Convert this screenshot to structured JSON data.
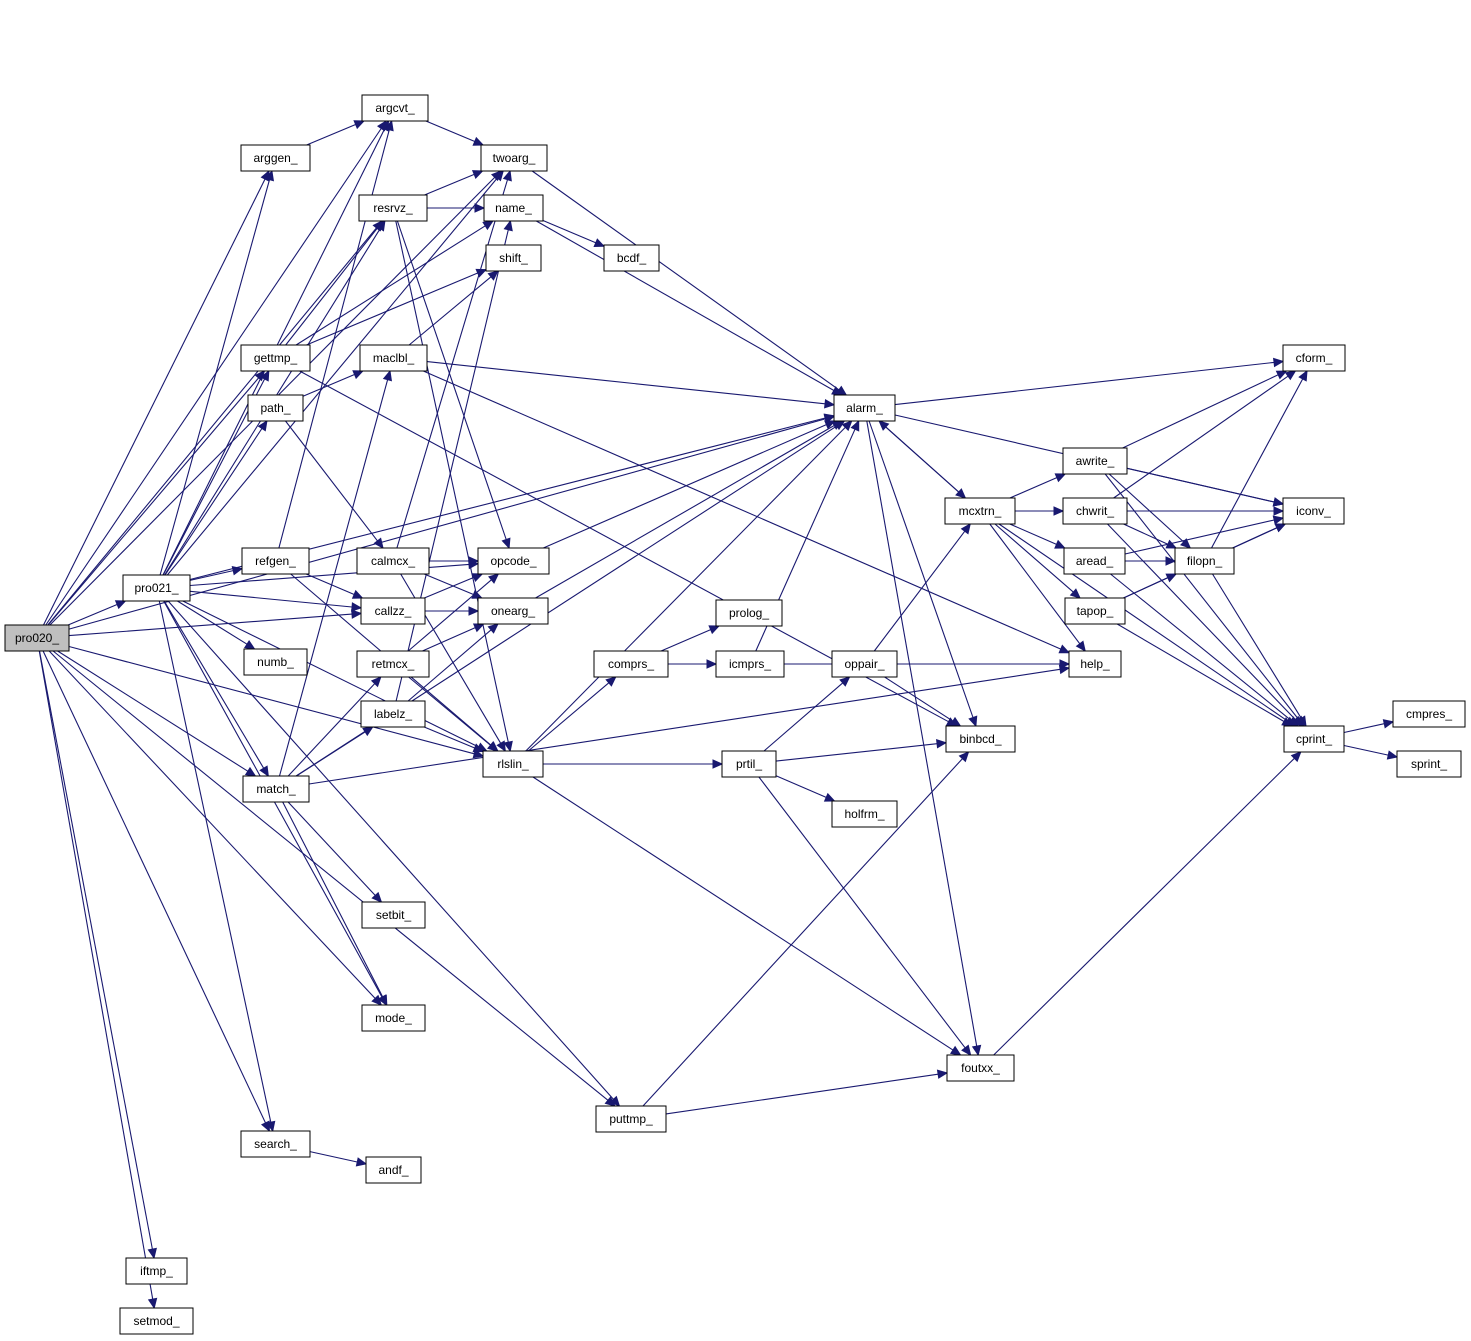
{
  "colors": {
    "edge": "#191970",
    "node_fill": "#ffffff",
    "node_border": "#000000",
    "node_border_truncated": "#ff0000",
    "root_fill": "#bfbfbf"
  },
  "nodes": [
    {
      "id": "pro020",
      "label": "pro020_",
      "kind": "root"
    },
    {
      "id": "pro021",
      "label": "pro021_",
      "kind": "normal"
    },
    {
      "id": "argcvt",
      "label": "argcvt_",
      "kind": "normal"
    },
    {
      "id": "arggen",
      "label": "arggen_",
      "kind": "normal"
    },
    {
      "id": "twoarg",
      "label": "twoarg_",
      "kind": "normal"
    },
    {
      "id": "resrvz",
      "label": "resrvz_",
      "kind": "normal"
    },
    {
      "id": "name",
      "label": "name_",
      "kind": "normal"
    },
    {
      "id": "bcdf",
      "label": "bcdf_",
      "kind": "normal"
    },
    {
      "id": "shift",
      "label": "shift_",
      "kind": "normal"
    },
    {
      "id": "gettmp",
      "label": "gettmp_",
      "kind": "normal"
    },
    {
      "id": "maclbl",
      "label": "maclbl_",
      "kind": "normal"
    },
    {
      "id": "path",
      "label": "path_",
      "kind": "normal"
    },
    {
      "id": "alarm",
      "label": "alarm_",
      "kind": "normal"
    },
    {
      "id": "refgen",
      "label": "refgen_",
      "kind": "normal"
    },
    {
      "id": "calmcx",
      "label": "calmcx_",
      "kind": "normal"
    },
    {
      "id": "opcode",
      "label": "opcode_",
      "kind": "normal"
    },
    {
      "id": "callzz",
      "label": "callzz_",
      "kind": "normal"
    },
    {
      "id": "onearg",
      "label": "onearg_",
      "kind": "normal"
    },
    {
      "id": "numb",
      "label": "numb_",
      "kind": "normal"
    },
    {
      "id": "retmcx",
      "label": "retmcx_",
      "kind": "normal"
    },
    {
      "id": "labelz",
      "label": "labelz_",
      "kind": "normal"
    },
    {
      "id": "rlslin",
      "label": "rlslin_",
      "kind": "normal"
    },
    {
      "id": "match",
      "label": "match_",
      "kind": "normal"
    },
    {
      "id": "setbit",
      "label": "setbit_",
      "kind": "normal"
    },
    {
      "id": "mode",
      "label": "mode_",
      "kind": "normal"
    },
    {
      "id": "search",
      "label": "search_",
      "kind": "normal"
    },
    {
      "id": "andf",
      "label": "andf_",
      "kind": "normal"
    },
    {
      "id": "puttmp",
      "label": "puttmp_",
      "kind": "normal"
    },
    {
      "id": "iftmp",
      "label": "iftmp_",
      "kind": "normal"
    },
    {
      "id": "setmod",
      "label": "setmod_",
      "kind": "normal"
    },
    {
      "id": "prolog",
      "label": "prolog_",
      "kind": "truncated"
    },
    {
      "id": "comprs",
      "label": "comprs_",
      "kind": "normal"
    },
    {
      "id": "icmprs",
      "label": "icmprs_",
      "kind": "truncated"
    },
    {
      "id": "oppair",
      "label": "oppair_",
      "kind": "normal"
    },
    {
      "id": "prtil",
      "label": "prtil_",
      "kind": "normal"
    },
    {
      "id": "holfrm",
      "label": "holfrm_",
      "kind": "normal"
    },
    {
      "id": "binbcd",
      "label": "binbcd_",
      "kind": "normal"
    },
    {
      "id": "foutxx",
      "label": "foutxx_",
      "kind": "normal"
    },
    {
      "id": "mcxtrn",
      "label": "mcxtrn_",
      "kind": "normal"
    },
    {
      "id": "help",
      "label": "help_",
      "kind": "normal"
    },
    {
      "id": "awrite",
      "label": "awrite_",
      "kind": "normal"
    },
    {
      "id": "chwrit",
      "label": "chwrit_",
      "kind": "normal"
    },
    {
      "id": "aread",
      "label": "aread_",
      "kind": "normal"
    },
    {
      "id": "tapop",
      "label": "tapop_",
      "kind": "truncated"
    },
    {
      "id": "filopn",
      "label": "filopn_",
      "kind": "truncated"
    },
    {
      "id": "cform",
      "label": "cform_",
      "kind": "normal"
    },
    {
      "id": "iconv",
      "label": "iconv_",
      "kind": "normal"
    },
    {
      "id": "cprint",
      "label": "cprint_",
      "kind": "normal"
    },
    {
      "id": "cmpres",
      "label": "cmpres_",
      "kind": "normal"
    },
    {
      "id": "sprint",
      "label": "sprint_",
      "kind": "normal"
    }
  ],
  "edges": [
    [
      "pro020",
      "pro021"
    ],
    [
      "pro020",
      "argcvt"
    ],
    [
      "pro020",
      "arggen"
    ],
    [
      "pro020",
      "twoarg"
    ],
    [
      "pro020",
      "resrvz"
    ],
    [
      "pro020",
      "gettmp"
    ],
    [
      "pro020",
      "alarm"
    ],
    [
      "pro020",
      "callzz"
    ],
    [
      "pro020",
      "match"
    ],
    [
      "pro020",
      "mode"
    ],
    [
      "pro020",
      "rlslin"
    ],
    [
      "pro020",
      "search"
    ],
    [
      "pro020",
      "puttmp"
    ],
    [
      "pro020",
      "iftmp"
    ],
    [
      "pro020",
      "setmod"
    ],
    [
      "pro021",
      "arggen"
    ],
    [
      "pro021",
      "argcvt"
    ],
    [
      "pro021",
      "twoarg"
    ],
    [
      "pro021",
      "resrvz"
    ],
    [
      "pro021",
      "gettmp"
    ],
    [
      "pro021",
      "path"
    ],
    [
      "pro021",
      "alarm"
    ],
    [
      "pro021",
      "refgen"
    ],
    [
      "pro021",
      "opcode"
    ],
    [
      "pro021",
      "callzz"
    ],
    [
      "pro021",
      "numb"
    ],
    [
      "pro021",
      "match"
    ],
    [
      "pro021",
      "mode"
    ],
    [
      "pro021",
      "rlslin"
    ],
    [
      "pro021",
      "search"
    ],
    [
      "pro021",
      "puttmp"
    ],
    [
      "arggen",
      "argcvt"
    ],
    [
      "argcvt",
      "twoarg"
    ],
    [
      "twoarg",
      "alarm"
    ],
    [
      "resrvz",
      "twoarg"
    ],
    [
      "resrvz",
      "name"
    ],
    [
      "resrvz",
      "opcode"
    ],
    [
      "resrvz",
      "rlslin"
    ],
    [
      "name",
      "bcdf"
    ],
    [
      "name",
      "alarm"
    ],
    [
      "gettmp",
      "resrvz"
    ],
    [
      "gettmp",
      "name"
    ],
    [
      "gettmp",
      "shift"
    ],
    [
      "gettmp",
      "binbcd"
    ],
    [
      "maclbl",
      "shift"
    ],
    [
      "maclbl",
      "alarm"
    ],
    [
      "maclbl",
      "help"
    ],
    [
      "path",
      "maclbl"
    ],
    [
      "path",
      "calmcx"
    ],
    [
      "refgen",
      "argcvt"
    ],
    [
      "refgen",
      "callzz"
    ],
    [
      "refgen",
      "rlslin"
    ],
    [
      "calmcx",
      "twoarg"
    ],
    [
      "calmcx",
      "opcode"
    ],
    [
      "calmcx",
      "onearg"
    ],
    [
      "calmcx",
      "rlslin"
    ],
    [
      "callzz",
      "opcode"
    ],
    [
      "callzz",
      "onearg"
    ],
    [
      "opcode",
      "alarm"
    ],
    [
      "onearg",
      "alarm"
    ],
    [
      "retmcx",
      "opcode"
    ],
    [
      "retmcx",
      "onearg"
    ],
    [
      "retmcx",
      "rlslin"
    ],
    [
      "labelz",
      "name"
    ],
    [
      "labelz",
      "onearg"
    ],
    [
      "labelz",
      "rlslin"
    ],
    [
      "match",
      "maclbl"
    ],
    [
      "match",
      "retmcx"
    ],
    [
      "match",
      "labelz"
    ],
    [
      "match",
      "alarm"
    ],
    [
      "match",
      "setbit"
    ],
    [
      "match",
      "mode"
    ],
    [
      "match",
      "help"
    ],
    [
      "rlslin",
      "comprs"
    ],
    [
      "rlslin",
      "prtil"
    ],
    [
      "rlslin",
      "alarm"
    ],
    [
      "rlslin",
      "foutxx"
    ],
    [
      "comprs",
      "prolog"
    ],
    [
      "comprs",
      "icmprs"
    ],
    [
      "icmprs",
      "alarm"
    ],
    [
      "icmprs",
      "help"
    ],
    [
      "prtil",
      "oppair"
    ],
    [
      "prtil",
      "binbcd"
    ],
    [
      "prtil",
      "holfrm"
    ],
    [
      "prtil",
      "foutxx"
    ],
    [
      "oppair",
      "mcxtrn"
    ],
    [
      "oppair",
      "binbcd"
    ],
    [
      "search",
      "andf"
    ],
    [
      "puttmp",
      "binbcd"
    ],
    [
      "puttmp",
      "foutxx"
    ],
    [
      "alarm",
      "cform"
    ],
    [
      "alarm",
      "iconv"
    ],
    [
      "alarm",
      "mcxtrn"
    ],
    [
      "alarm",
      "binbcd"
    ],
    [
      "alarm",
      "foutxx"
    ],
    [
      "mcxtrn",
      "alarm"
    ],
    [
      "mcxtrn",
      "awrite"
    ],
    [
      "mcxtrn",
      "chwrit"
    ],
    [
      "mcxtrn",
      "aread"
    ],
    [
      "mcxtrn",
      "tapop"
    ],
    [
      "mcxtrn",
      "help"
    ],
    [
      "mcxtrn",
      "cprint"
    ],
    [
      "awrite",
      "cform"
    ],
    [
      "awrite",
      "iconv"
    ],
    [
      "awrite",
      "filopn"
    ],
    [
      "awrite",
      "cprint"
    ],
    [
      "chwrit",
      "cform"
    ],
    [
      "chwrit",
      "iconv"
    ],
    [
      "chwrit",
      "filopn"
    ],
    [
      "chwrit",
      "cprint"
    ],
    [
      "aread",
      "filopn"
    ],
    [
      "aread",
      "iconv"
    ],
    [
      "aread",
      "cprint"
    ],
    [
      "tapop",
      "filopn"
    ],
    [
      "tapop",
      "cprint"
    ],
    [
      "tapop",
      "iconv"
    ],
    [
      "filopn",
      "cform"
    ],
    [
      "filopn",
      "iconv"
    ],
    [
      "filopn",
      "cprint"
    ],
    [
      "foutxx",
      "cprint"
    ],
    [
      "cprint",
      "cmpres"
    ],
    [
      "cprint",
      "sprint"
    ]
  ]
}
